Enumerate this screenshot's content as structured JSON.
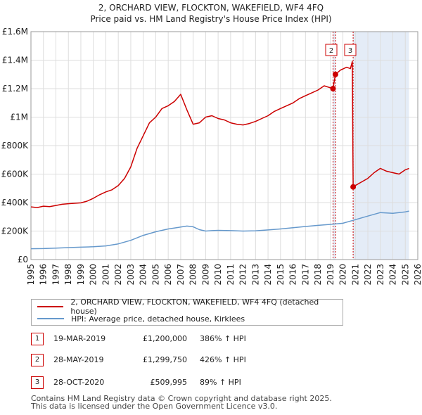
{
  "chart_data": {
    "type": "line",
    "title": "2, ORCHARD VIEW, FLOCKTON, WAKEFIELD, WF4 4FQ",
    "subtitle": "Price paid vs. HM Land Registry's House Price Index (HPI)",
    "ylim": [
      0,
      1600000
    ],
    "xlim": [
      1995.0,
      2026.0
    ],
    "y_ticks": [
      0,
      200000,
      400000,
      600000,
      800000,
      1000000,
      1200000,
      1400000,
      1600000
    ],
    "y_tick_labels": [
      "£0",
      "£200K",
      "£400K",
      "£600K",
      "£800K",
      "£1M",
      "£1.2M",
      "£1.4M",
      "£1.6M"
    ],
    "x_ticks": [
      1995,
      1996,
      1997,
      1998,
      1999,
      2000,
      2001,
      2002,
      2003,
      2004,
      2005,
      2006,
      2007,
      2008,
      2009,
      2010,
      2011,
      2012,
      2013,
      2014,
      2015,
      2016,
      2017,
      2018,
      2019,
      2020,
      2021,
      2022,
      2023,
      2024,
      2025,
      2026
    ],
    "grid": true,
    "series": [
      {
        "name": "2, ORCHARD VIEW, FLOCKTON, WAKEFIELD, WF4 4FQ (detached house)",
        "color": "#cc0000",
        "x": [
          1995.0,
          1995.5,
          1996.0,
          1996.5,
          1997.0,
          1997.5,
          1998.0,
          1998.5,
          1999.0,
          1999.5,
          2000.0,
          2000.5,
          2001.0,
          2001.5,
          2002.0,
          2002.5,
          2003.0,
          2003.5,
          2004.0,
          2004.5,
          2005.0,
          2005.5,
          2006.0,
          2006.5,
          2007.0,
          2007.5,
          2008.0,
          2008.5,
          2009.0,
          2009.5,
          2010.0,
          2010.5,
          2011.0,
          2011.5,
          2012.0,
          2012.5,
          2013.0,
          2013.5,
          2014.0,
          2014.5,
          2015.0,
          2015.5,
          2016.0,
          2016.5,
          2017.0,
          2017.5,
          2018.0,
          2018.5,
          2019.21,
          2019.4,
          2019.8,
          2020.3,
          2020.6,
          2020.75,
          2020.82,
          2021.0,
          2021.5,
          2022.0,
          2022.5,
          2023.0,
          2023.5,
          2024.0,
          2024.5,
          2025.0,
          2025.3
        ],
        "values": [
          370000,
          365000,
          375000,
          372000,
          380000,
          388000,
          392000,
          395000,
          398000,
          410000,
          430000,
          455000,
          475000,
          490000,
          520000,
          570000,
          650000,
          780000,
          870000,
          960000,
          1000000,
          1060000,
          1080000,
          1110000,
          1160000,
          1050000,
          950000,
          960000,
          1000000,
          1010000,
          990000,
          980000,
          960000,
          950000,
          945000,
          955000,
          970000,
          990000,
          1010000,
          1040000,
          1060000,
          1080000,
          1100000,
          1130000,
          1150000,
          1170000,
          1190000,
          1220000,
          1200000,
          1299750,
          1330000,
          1350000,
          1340000,
          1390000,
          509995,
          520000,
          545000,
          570000,
          610000,
          640000,
          620000,
          610000,
          600000,
          630000,
          640000
        ]
      },
      {
        "name": "HPI: Average price, detached house, Kirklees",
        "color": "#6699cc",
        "x": [
          1995.0,
          1996.0,
          1997.0,
          1998.0,
          1999.0,
          2000.0,
          2001.0,
          2002.0,
          2003.0,
          2004.0,
          2005.0,
          2006.0,
          2007.0,
          2007.5,
          2008.0,
          2008.5,
          2009.0,
          2009.5,
          2010.0,
          2011.0,
          2012.0,
          2013.0,
          2014.0,
          2015.0,
          2016.0,
          2017.0,
          2018.0,
          2019.0,
          2020.0,
          2021.0,
          2022.0,
          2023.0,
          2024.0,
          2025.0,
          2025.3
        ],
        "values": [
          76000,
          77000,
          80000,
          84000,
          87000,
          90000,
          96000,
          110000,
          135000,
          170000,
          195000,
          215000,
          228000,
          235000,
          230000,
          210000,
          200000,
          203000,
          205000,
          203000,
          200000,
          202000,
          208000,
          215000,
          223000,
          232000,
          240000,
          247000,
          255000,
          280000,
          305000,
          330000,
          325000,
          335000,
          340000
        ]
      }
    ],
    "markers": [
      {
        "label": "1",
        "x": 2019.21,
        "y": 1200000,
        "dashed": true
      },
      {
        "label": "2",
        "x": 2019.4,
        "y": 1299750,
        "dashed": true
      },
      {
        "label": "3",
        "x": 2020.82,
        "y": 509995,
        "dashed": true
      }
    ],
    "shaded_regions": [
      [
        2019.21,
        2019.4
      ],
      [
        2020.82,
        2025.3
      ]
    ]
  },
  "legend": {
    "items": [
      {
        "label": "2, ORCHARD VIEW, FLOCKTON, WAKEFIELD, WF4 4FQ (detached house)",
        "color": "#cc0000"
      },
      {
        "label": "HPI: Average price, detached house, Kirklees",
        "color": "#6699cc"
      }
    ]
  },
  "transactions": [
    {
      "num": "1",
      "date": "19-MAR-2019",
      "price": "£1,200,000",
      "hpi": "386% ↑ HPI"
    },
    {
      "num": "2",
      "date": "28-MAY-2019",
      "price": "£1,299,750",
      "hpi": "426% ↑ HPI"
    },
    {
      "num": "3",
      "date": "28-OCT-2020",
      "price": "£509,995",
      "hpi": "89% ↑ HPI"
    }
  ],
  "footer": {
    "line1": "Contains HM Land Registry data © Crown copyright and database right 2025.",
    "line2": "This data is licensed under the Open Government Licence v3.0."
  }
}
